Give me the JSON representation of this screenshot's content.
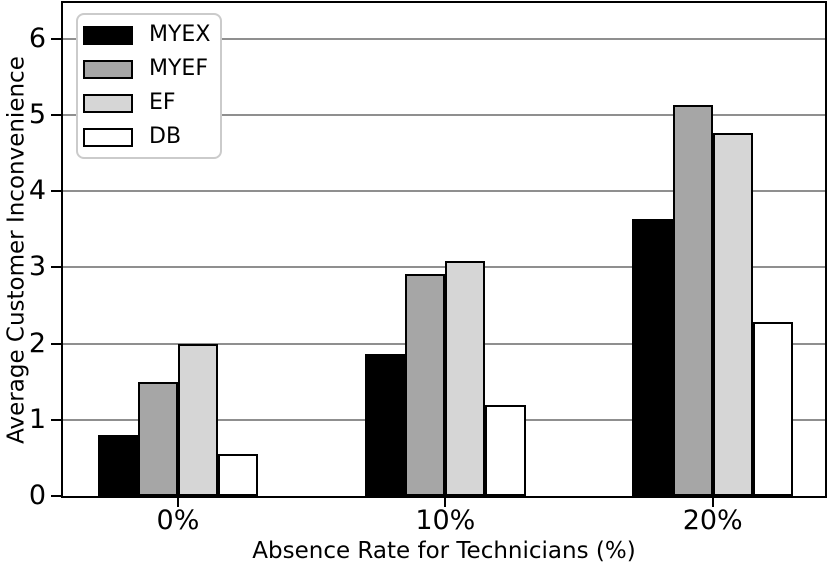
{
  "chart_data": {
    "type": "bar",
    "title": "",
    "xlabel": "Absence Rate for Technicians (%)",
    "ylabel": "Average Customer Inconvenience",
    "categories": [
      "0%",
      "10%",
      "20%"
    ],
    "series": [
      {
        "name": "MYEX",
        "color": "#000000",
        "values": [
          0.8,
          1.86,
          3.63
        ]
      },
      {
        "name": "MYEF",
        "color": "#a6a6a6",
        "values": [
          1.5,
          2.92,
          5.13
        ]
      },
      {
        "name": "EF",
        "color": "#d6d6d6",
        "values": [
          2.0,
          3.08,
          4.76
        ]
      },
      {
        "name": "DB",
        "color": "#ffffff",
        "values": [
          0.55,
          1.2,
          2.29
        ]
      }
    ],
    "bar_edge_color": "#000000",
    "bar_width": 0.15,
    "yticks": [
      0,
      1,
      2,
      3,
      4,
      5,
      6
    ],
    "ylim": [
      0,
      6.47
    ],
    "xlim": [
      -0.43,
      2.42
    ],
    "grid": "horizontal",
    "grid_color": "#8f8f8f",
    "frame": "full-box",
    "legend_position": "upper-left"
  }
}
